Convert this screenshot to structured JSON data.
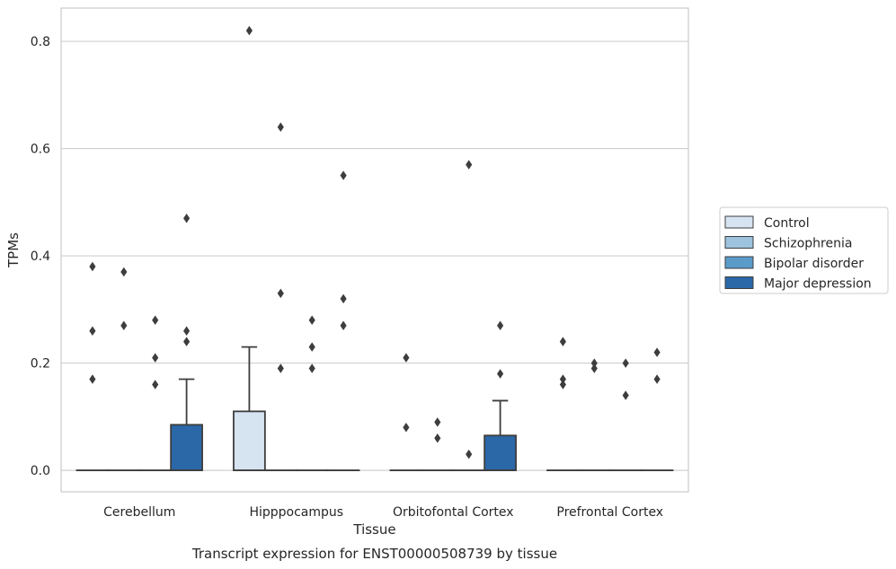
{
  "chart_data": {
    "type": "box",
    "title": "",
    "caption": "Transcript expression for ENST00000508739 by tissue",
    "xlabel": "Tissue",
    "ylabel": "TPMs",
    "ylim": [
      -0.04,
      0.862
    ],
    "yticks": [
      0.0,
      0.2,
      0.4,
      0.6,
      0.8
    ],
    "ytick_labels": [
      "0.0",
      "0.2",
      "0.4",
      "0.6",
      "0.8"
    ],
    "grid": "horizontal",
    "legend_position": "right",
    "categories": [
      "Cerebellum",
      "Hipppocampus",
      "Orbitofontal Cortex",
      "Prefrontal Cortex"
    ],
    "series": [
      {
        "name": "Control",
        "color": "#d6e4f2",
        "boxes": [
          {
            "q1": 0,
            "median": 0,
            "q3": 0,
            "whisker_low": 0,
            "whisker_high": 0,
            "outliers": [
              0.17,
              0.26,
              0.38
            ]
          },
          {
            "q1": 0,
            "median": 0,
            "q3": 0.11,
            "whisker_low": 0,
            "whisker_high": 0.23,
            "outliers": [
              0.82
            ]
          },
          {
            "q1": 0,
            "median": 0,
            "q3": 0,
            "whisker_low": 0,
            "whisker_high": 0,
            "outliers": [
              0.08,
              0.21
            ]
          },
          {
            "q1": 0,
            "median": 0,
            "q3": 0,
            "whisker_low": 0,
            "whisker_high": 0,
            "outliers": [
              0.16,
              0.17,
              0.24
            ]
          }
        ]
      },
      {
        "name": "Schizophrenia",
        "color": "#9dc3de",
        "boxes": [
          {
            "q1": 0,
            "median": 0,
            "q3": 0,
            "whisker_low": 0,
            "whisker_high": 0,
            "outliers": [
              0.27,
              0.37
            ]
          },
          {
            "q1": 0,
            "median": 0,
            "q3": 0,
            "whisker_low": 0,
            "whisker_high": 0,
            "outliers": [
              0.19,
              0.33,
              0.64
            ]
          },
          {
            "q1": 0,
            "median": 0,
            "q3": 0,
            "whisker_low": 0,
            "whisker_high": 0,
            "outliers": [
              0.06,
              0.09
            ]
          },
          {
            "q1": 0,
            "median": 0,
            "q3": 0,
            "whisker_low": 0,
            "whisker_high": 0,
            "outliers": [
              0.19,
              0.2
            ]
          }
        ]
      },
      {
        "name": "Bipolar disorder",
        "color": "#5a9bc9",
        "boxes": [
          {
            "q1": 0,
            "median": 0,
            "q3": 0,
            "whisker_low": 0,
            "whisker_high": 0,
            "outliers": [
              0.16,
              0.21,
              0.28
            ]
          },
          {
            "q1": 0,
            "median": 0,
            "q3": 0,
            "whisker_low": 0,
            "whisker_high": 0,
            "outliers": [
              0.19,
              0.23,
              0.28
            ]
          },
          {
            "q1": 0,
            "median": 0,
            "q3": 0,
            "whisker_low": 0,
            "whisker_high": 0,
            "outliers": [
              0.03,
              0.57
            ]
          },
          {
            "q1": 0,
            "median": 0,
            "q3": 0,
            "whisker_low": 0,
            "whisker_high": 0,
            "outliers": [
              0.14,
              0.2
            ]
          }
        ]
      },
      {
        "name": "Major depression",
        "color": "#2a68a8",
        "boxes": [
          {
            "q1": 0,
            "median": 0,
            "q3": 0.085,
            "whisker_low": 0,
            "whisker_high": 0.17,
            "outliers": [
              0.24,
              0.26,
              0.47
            ]
          },
          {
            "q1": 0,
            "median": 0,
            "q3": 0,
            "whisker_low": 0,
            "whisker_high": 0,
            "outliers": [
              0.27,
              0.32,
              0.55
            ]
          },
          {
            "q1": 0,
            "median": 0,
            "q3": 0.065,
            "whisker_low": 0,
            "whisker_high": 0.13,
            "outliers": [
              0.18,
              0.27
            ]
          },
          {
            "q1": 0,
            "median": 0,
            "q3": 0,
            "whisker_low": 0,
            "whisker_high": 0,
            "outliers": [
              0.17,
              0.22
            ]
          }
        ]
      }
    ]
  }
}
